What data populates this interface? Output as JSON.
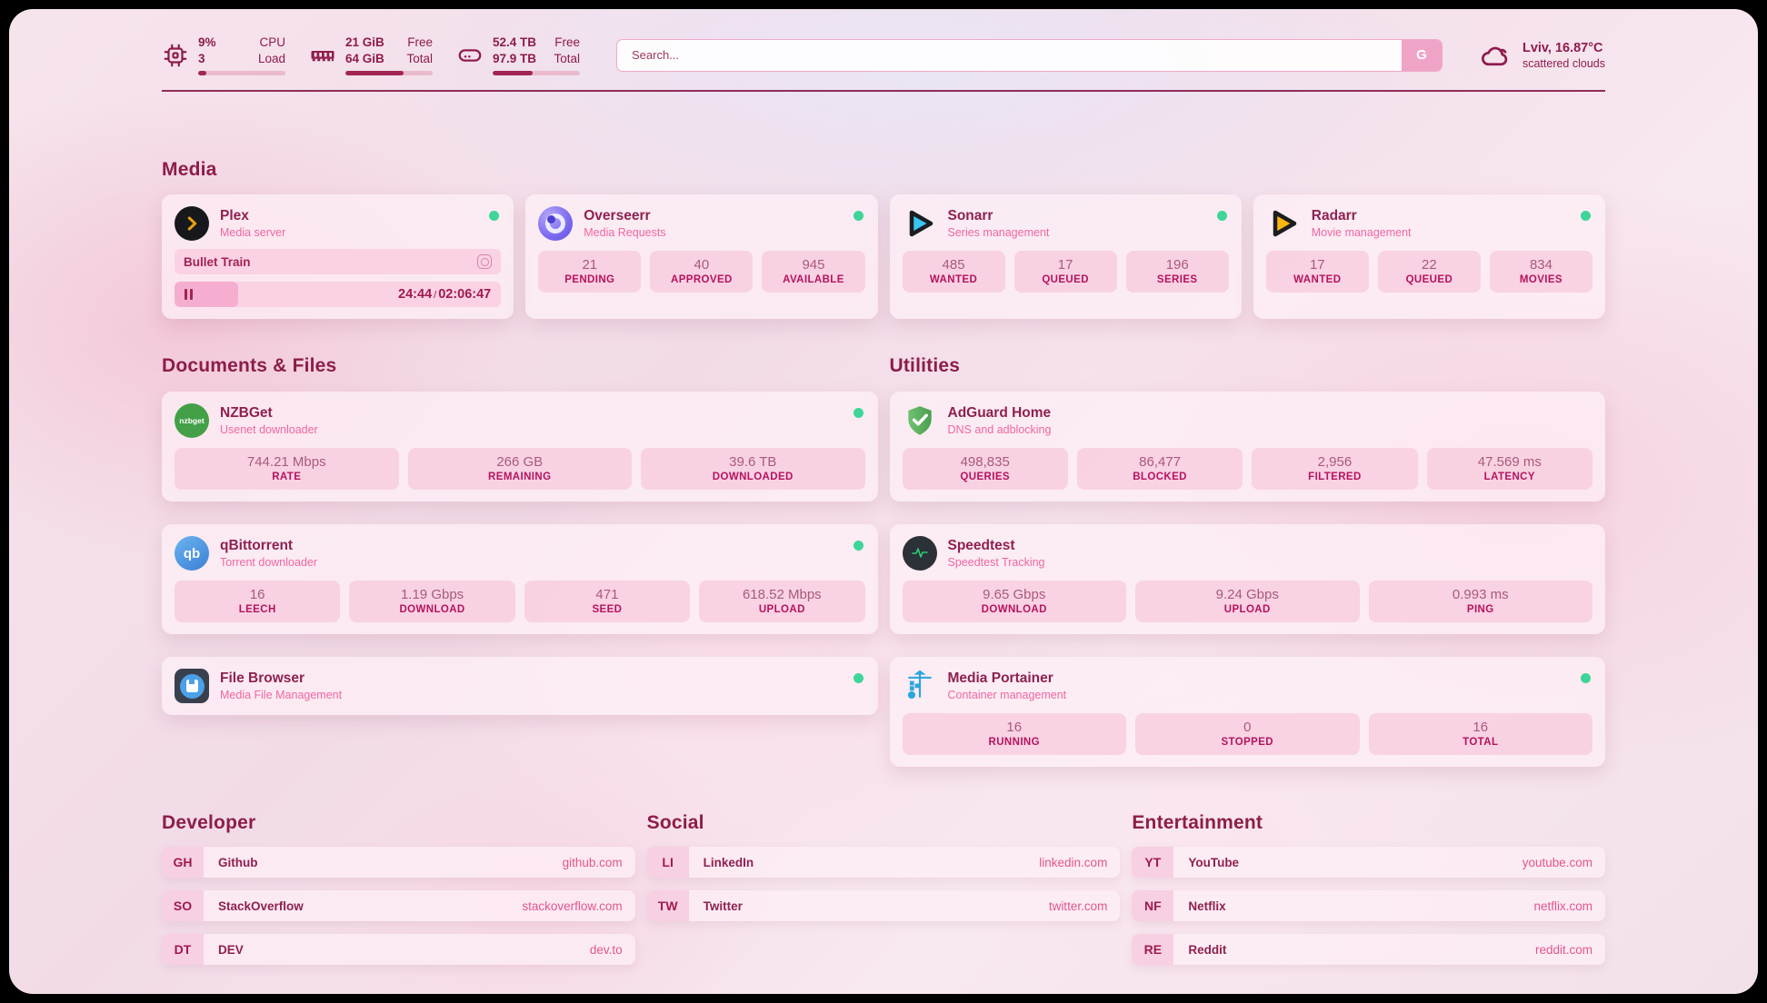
{
  "theme": {
    "accent": "#8e1c4d",
    "pink": "#e2578f",
    "status_online": "#3ed598",
    "tile_pink": "#f7cfe0",
    "plex_gold": "#e5a00d",
    "sonarr_blue": "#38c6f4",
    "radarr_yellow": "#f7b80f"
  },
  "top_bar": {
    "cpu": {
      "value_top": "9%",
      "value_bottom": "3",
      "label_top": "CPU",
      "label_bottom": "Load",
      "progress": 9
    },
    "ram": {
      "value_top": "21 GiB",
      "value_bottom": "64 GiB",
      "label_top": "Free",
      "label_bottom": "Total",
      "progress": 67
    },
    "storage": {
      "value_top": "52.4 TB",
      "value_bottom": "97.9 TB",
      "label_top": "Free",
      "label_bottom": "Total",
      "progress": 46
    },
    "search": {
      "placeholder": "Search...",
      "button": "G"
    },
    "weather": {
      "location_temp": "Lviv, 16.87°C",
      "condition": "scattered clouds"
    }
  },
  "sections": {
    "media": "Media",
    "documents": "Documents & Files",
    "utilities": "Utilities",
    "developer": "Developer",
    "social": "Social",
    "entertainment": "Entertainment"
  },
  "services": {
    "plex": {
      "name": "Plex",
      "subtitle": "Media server",
      "now_playing": {
        "title": "Bullet Train",
        "elapsed": "24:44",
        "separator": "/",
        "duration": "02:06:47",
        "progress": 19.5
      }
    },
    "overseerr": {
      "name": "Overseerr",
      "subtitle": "Media Requests",
      "stats": [
        {
          "value": "21",
          "label": "PENDING"
        },
        {
          "value": "40",
          "label": "APPROVED"
        },
        {
          "value": "945",
          "label": "AVAILABLE"
        }
      ]
    },
    "sonarr": {
      "name": "Sonarr",
      "subtitle": "Series management",
      "stats": [
        {
          "value": "485",
          "label": "WANTED"
        },
        {
          "value": "17",
          "label": "QUEUED"
        },
        {
          "value": "196",
          "label": "SERIES"
        }
      ]
    },
    "radarr": {
      "name": "Radarr",
      "subtitle": "Movie management",
      "stats": [
        {
          "value": "17",
          "label": "WANTED"
        },
        {
          "value": "22",
          "label": "QUEUED"
        },
        {
          "value": "834",
          "label": "MOVIES"
        }
      ]
    },
    "nzbget": {
      "name": "NZBGet",
      "subtitle": "Usenet downloader",
      "icon_text": "nzbget",
      "stats": [
        {
          "value": "744.21 Mbps",
          "label": "RATE"
        },
        {
          "value": "266 GB",
          "label": "REMAINING"
        },
        {
          "value": "39.6 TB",
          "label": "DOWNLOADED"
        }
      ]
    },
    "qbittorrent": {
      "name": "qBittorrent",
      "subtitle": "Torrent downloader",
      "icon_text": "qb",
      "stats": [
        {
          "value": "16",
          "label": "LEECH"
        },
        {
          "value": "1.19 Gbps",
          "label": "DOWNLOAD"
        },
        {
          "value": "471",
          "label": "SEED"
        },
        {
          "value": "618.52 Mbps",
          "label": "UPLOAD"
        }
      ]
    },
    "filebrowser": {
      "name": "File Browser",
      "subtitle": "Media File Management"
    },
    "adguard": {
      "name": "AdGuard Home",
      "subtitle": "DNS and adblocking",
      "stats": [
        {
          "value": "498,835",
          "label": "QUERIES"
        },
        {
          "value": "86,477",
          "label": "BLOCKED"
        },
        {
          "value": "2,956",
          "label": "FILTERED"
        },
        {
          "value": "47.569 ms",
          "label": "LATENCY"
        }
      ]
    },
    "speedtest": {
      "name": "Speedtest",
      "subtitle": "Speedtest Tracking",
      "stats": [
        {
          "value": "9.65 Gbps",
          "label": "DOWNLOAD"
        },
        {
          "value": "9.24 Gbps",
          "label": "UPLOAD"
        },
        {
          "value": "0.993 ms",
          "label": "PING"
        }
      ]
    },
    "portainer": {
      "name": "Media Portainer",
      "subtitle": "Container management",
      "stats": [
        {
          "value": "16",
          "label": "RUNNING"
        },
        {
          "value": "0",
          "label": "STOPPED"
        },
        {
          "value": "16",
          "label": "TOTAL"
        }
      ]
    }
  },
  "links": {
    "developer": [
      {
        "abbr": "GH",
        "name": "Github",
        "url": "github.com"
      },
      {
        "abbr": "SO",
        "name": "StackOverflow",
        "url": "stackoverflow.com"
      },
      {
        "abbr": "DT",
        "name": "DEV",
        "url": "dev.to"
      }
    ],
    "social": [
      {
        "abbr": "LI",
        "name": "LinkedIn",
        "url": "linkedin.com"
      },
      {
        "abbr": "TW",
        "name": "Twitter",
        "url": "twitter.com"
      }
    ],
    "entertainment": [
      {
        "abbr": "YT",
        "name": "YouTube",
        "url": "youtube.com"
      },
      {
        "abbr": "NF",
        "name": "Netflix",
        "url": "netflix.com"
      },
      {
        "abbr": "RE",
        "name": "Reddit",
        "url": "reddit.com"
      }
    ]
  }
}
